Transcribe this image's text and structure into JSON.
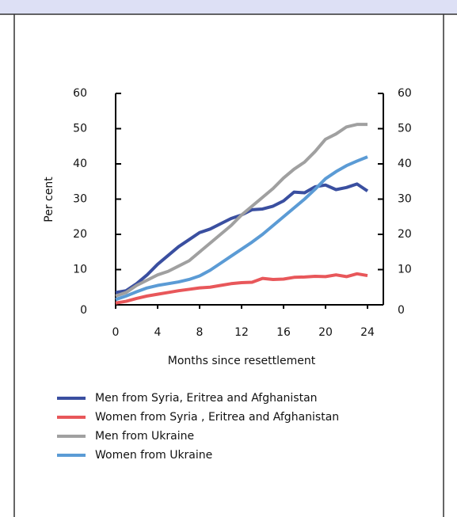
{
  "chart_data": {
    "type": "line",
    "xlabel": "Months since resettlement",
    "ylabel": "Per cent",
    "x": [
      0,
      1,
      2,
      3,
      4,
      5,
      6,
      7,
      8,
      9,
      10,
      11,
      12,
      13,
      14,
      15,
      16,
      17,
      18,
      19,
      20,
      21,
      22,
      23,
      24
    ],
    "xlim": [
      0,
      24
    ],
    "xticks": [
      0,
      4,
      8,
      12,
      16,
      20,
      24
    ],
    "ylim": [
      0,
      60
    ],
    "yticks": [
      0,
      10,
      20,
      30,
      40,
      50,
      60
    ],
    "y2lim": [
      0,
      60
    ],
    "y2ticks": [
      0,
      10,
      20,
      30,
      40,
      50,
      60
    ],
    "series": [
      {
        "name": "Men from Syria, Eritrea and Afghanistan",
        "color": "#3a4fa0",
        "values": [
          3.5,
          4,
          6,
          8.5,
          11.5,
          14,
          16.5,
          18.5,
          20.5,
          21.5,
          23,
          24.5,
          25.5,
          27,
          27.2,
          28,
          29.5,
          32,
          31.8,
          33.5,
          34,
          32.7,
          33.3,
          34.3,
          32.3
        ]
      },
      {
        "name": "Women from Syria , Eritrea and Afghanistan",
        "color": "#e8575a",
        "values": [
          0.5,
          1,
          1.8,
          2.5,
          3,
          3.5,
          4,
          4.4,
          4.8,
          5,
          5.5,
          6,
          6.3,
          6.4,
          7.5,
          7.2,
          7.3,
          7.8,
          7.9,
          8.1,
          8,
          8.5,
          8,
          8.8,
          8.3
        ]
      },
      {
        "name": "Men from Ukraine",
        "color": "#a0a0a0",
        "values": [
          2.5,
          3.5,
          5.5,
          7,
          8.5,
          9.5,
          11,
          12.5,
          15,
          17.5,
          20,
          22.5,
          25.5,
          28,
          30.5,
          33,
          36,
          38.5,
          40.5,
          43.5,
          47,
          48.5,
          50.5,
          51.2,
          51.2
        ]
      },
      {
        "name": "Women from Ukraine",
        "color": "#5b9bd5",
        "values": [
          1.5,
          2.5,
          3.7,
          4.8,
          5.5,
          6,
          6.5,
          7.2,
          8.2,
          9.8,
          11.8,
          13.8,
          15.8,
          17.8,
          20,
          22.5,
          25,
          27.5,
          30,
          32.8,
          35.8,
          37.8,
          39.5,
          40.8,
          42
        ]
      }
    ]
  }
}
